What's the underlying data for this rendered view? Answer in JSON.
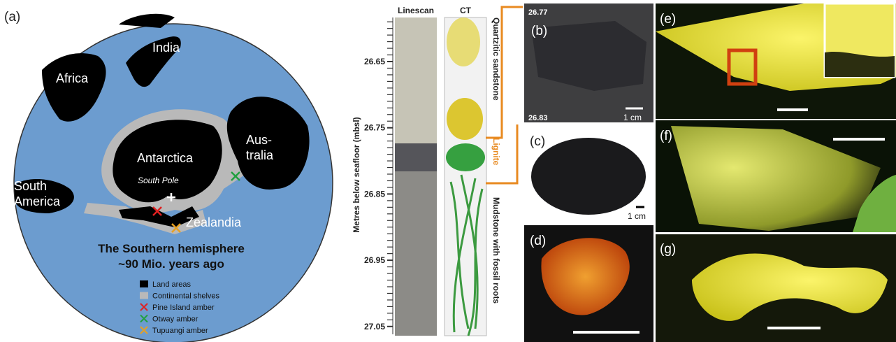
{
  "panel_a": {
    "label": "(a)",
    "places": {
      "india": "India",
      "africa": "Africa",
      "antarctica": "Antarctica",
      "australia": [
        "Aus-",
        "tralia"
      ],
      "south_pole": "South Pole",
      "south_america": [
        "South",
        "America"
      ],
      "zealandia": "Zealandia"
    },
    "title": [
      "The Southern hemisphere",
      "~90 Mio. years ago"
    ],
    "legend": [
      "Land areas",
      "Continental shelves",
      "Pine Island amber",
      "Otway amber",
      "Tupuangi amber"
    ]
  },
  "core": {
    "axis_label": "Metres below seafloor (mbsl)",
    "depth_ticks": [
      "26.65",
      "26.75",
      "26.85",
      "26.95",
      "27.05"
    ],
    "columns": [
      "Linescan",
      "CT"
    ],
    "units": [
      "Quartzitic sandstone",
      "Lignite",
      "Mudstone with fossil roots"
    ]
  },
  "panel_b": {
    "label": "(b)",
    "top_depth": "26.77",
    "bottom_depth": "26.83",
    "scale": "1 cm"
  },
  "panel_c": {
    "label": "(c)",
    "scale": "1 cm"
  },
  "panel_d": {
    "label": "(d)"
  },
  "panel_e": {
    "label": "(e)"
  },
  "panel_f": {
    "label": "(f)"
  },
  "panel_g": {
    "label": "(g)"
  }
}
